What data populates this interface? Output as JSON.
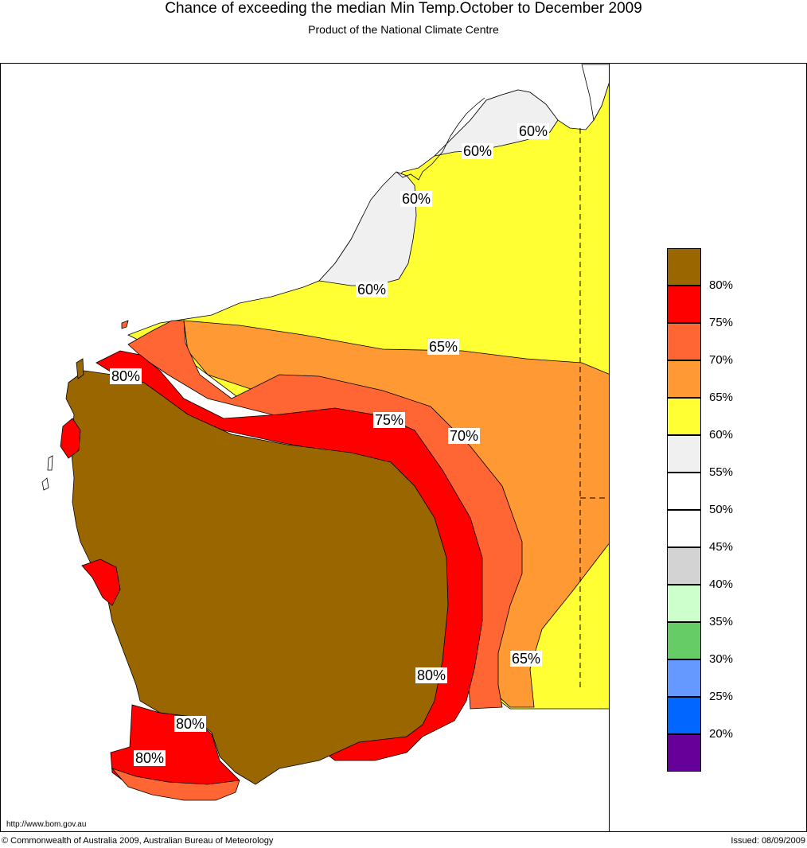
{
  "header": {
    "title": "Chance of exceeding the median Min Temp.October to December 2009",
    "subtitle": "Product of the National Climate Centre"
  },
  "map": {
    "region": "Western Australia",
    "contour_labels": [
      "60%",
      "60%",
      "60%",
      "60%",
      "65%",
      "80%",
      "75%",
      "70%",
      "80%",
      "65%",
      "80%",
      "80%"
    ],
    "colors": {
      "brown": "#996600",
      "red": "#ff0000",
      "redorange": "#ff6633",
      "orange": "#ff9933",
      "yellow": "#ffff33",
      "lightgrey": "#f0f0f0"
    }
  },
  "legend": {
    "swatches": [
      {
        "color": "#996600"
      },
      {
        "color": "#ff0000"
      },
      {
        "color": "#ff6633"
      },
      {
        "color": "#ff9933"
      },
      {
        "color": "#ffff33"
      },
      {
        "color": "#f0f0f0"
      },
      {
        "color": "#ffffff"
      },
      {
        "color": "#ffffff"
      },
      {
        "color": "#d3d3d3"
      },
      {
        "color": "#ccffcc"
      },
      {
        "color": "#66cc66"
      },
      {
        "color": "#6699ff"
      },
      {
        "color": "#0066ff"
      },
      {
        "color": "#660099"
      }
    ],
    "ticks": [
      "80%",
      "75%",
      "70%",
      "65%",
      "60%",
      "55%",
      "50%",
      "45%",
      "40%",
      "35%",
      "30%",
      "25%",
      "20%"
    ]
  },
  "footer": {
    "url": "http://www.bom.gov.au",
    "copyright": "© Commonwealth of Australia 2009, Australian Bureau of Meteorology",
    "issued": "Issued: 08/09/2009"
  }
}
